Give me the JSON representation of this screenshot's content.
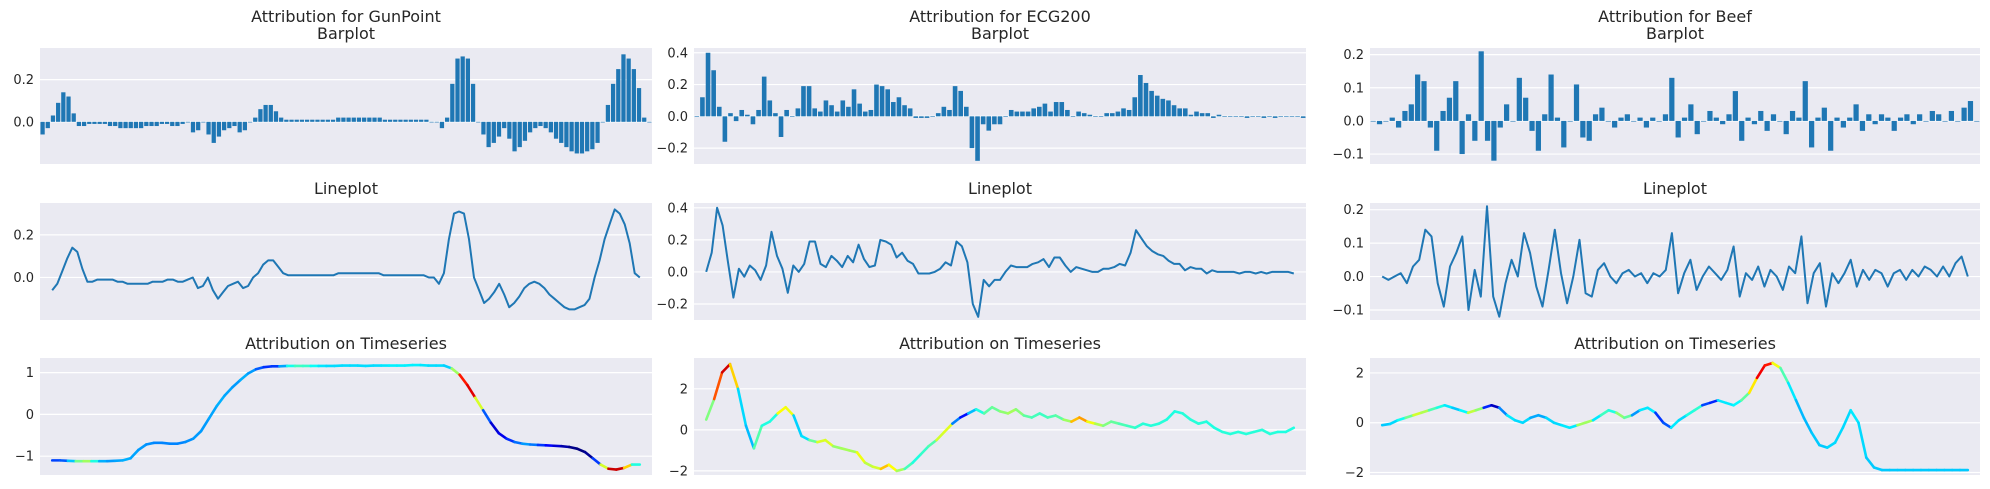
{
  "colors": {
    "bar": "#1f77b4",
    "line": "#1f77b4",
    "panel_bg": "#eaeaf2",
    "grid": "#ffffff",
    "colormap": "jet"
  },
  "chart_data": [
    {
      "type": "bar",
      "dataset": "GunPoint",
      "title": "Attribution for GunPoint",
      "subtitle": "Barplot",
      "ylim": [
        -0.2,
        0.35
      ],
      "yticks": [
        "0.2",
        "0.0"
      ],
      "ytick_values": [
        0.2,
        0.0
      ],
      "grid": true,
      "values": [
        -0.06,
        -0.03,
        0.03,
        0.09,
        0.14,
        0.12,
        0.04,
        -0.02,
        -0.02,
        -0.01,
        -0.01,
        -0.01,
        -0.01,
        -0.02,
        -0.02,
        -0.03,
        -0.03,
        -0.03,
        -0.03,
        -0.03,
        -0.02,
        -0.02,
        -0.02,
        -0.01,
        -0.01,
        -0.02,
        -0.02,
        -0.01,
        0.0,
        -0.05,
        -0.04,
        0.0,
        -0.06,
        -0.1,
        -0.07,
        -0.04,
        -0.03,
        -0.02,
        -0.05,
        -0.04,
        0.0,
        0.02,
        0.06,
        0.08,
        0.08,
        0.05,
        0.02,
        0.01,
        0.01,
        0.01,
        0.01,
        0.01,
        0.01,
        0.01,
        0.01,
        0.01,
        0.01,
        0.02,
        0.02,
        0.02,
        0.02,
        0.02,
        0.02,
        0.02,
        0.02,
        0.02,
        0.01,
        0.01,
        0.01,
        0.01,
        0.01,
        0.01,
        0.01,
        0.01,
        0.01,
        0.0,
        0.0,
        -0.03,
        0.02,
        0.18,
        0.3,
        0.31,
        0.3,
        0.18,
        0.0,
        -0.06,
        -0.12,
        -0.1,
        -0.07,
        -0.03,
        -0.08,
        -0.14,
        -0.12,
        -0.09,
        -0.05,
        -0.03,
        -0.02,
        -0.03,
        -0.05,
        -0.08,
        -0.1,
        -0.12,
        -0.14,
        -0.15,
        -0.15,
        -0.14,
        -0.13,
        -0.1,
        0.0,
        0.08,
        0.18,
        0.25,
        0.32,
        0.3,
        0.25,
        0.16,
        0.02,
        0.0
      ]
    },
    {
      "type": "line",
      "dataset": "GunPoint",
      "title": "Lineplot",
      "ylim": [
        -0.2,
        0.35
      ],
      "yticks": [
        "0.2",
        "0.0"
      ],
      "ytick_values": [
        0.2,
        0.0
      ],
      "grid": true,
      "values": [
        -0.06,
        -0.03,
        0.03,
        0.09,
        0.14,
        0.12,
        0.04,
        -0.02,
        -0.02,
        -0.01,
        -0.01,
        -0.01,
        -0.01,
        -0.02,
        -0.02,
        -0.03,
        -0.03,
        -0.03,
        -0.03,
        -0.03,
        -0.02,
        -0.02,
        -0.02,
        -0.01,
        -0.01,
        -0.02,
        -0.02,
        -0.01,
        0.0,
        -0.05,
        -0.04,
        0.0,
        -0.06,
        -0.1,
        -0.07,
        -0.04,
        -0.03,
        -0.02,
        -0.05,
        -0.04,
        0.0,
        0.02,
        0.06,
        0.08,
        0.08,
        0.05,
        0.02,
        0.01,
        0.01,
        0.01,
        0.01,
        0.01,
        0.01,
        0.01,
        0.01,
        0.01,
        0.01,
        0.02,
        0.02,
        0.02,
        0.02,
        0.02,
        0.02,
        0.02,
        0.02,
        0.02,
        0.01,
        0.01,
        0.01,
        0.01,
        0.01,
        0.01,
        0.01,
        0.01,
        0.01,
        0.0,
        0.0,
        -0.03,
        0.02,
        0.18,
        0.3,
        0.31,
        0.3,
        0.18,
        0.0,
        -0.06,
        -0.12,
        -0.1,
        -0.07,
        -0.03,
        -0.08,
        -0.14,
        -0.12,
        -0.09,
        -0.05,
        -0.03,
        -0.02,
        -0.03,
        -0.05,
        -0.08,
        -0.1,
        -0.12,
        -0.14,
        -0.15,
        -0.15,
        -0.14,
        -0.13,
        -0.1,
        0.0,
        0.08,
        0.18,
        0.25,
        0.32,
        0.3,
        0.25,
        0.16,
        0.02,
        0.0
      ]
    },
    {
      "type": "line",
      "colored_by": "attribution",
      "dataset": "GunPoint",
      "title": "Attribution on Timeseries",
      "ylim": [
        -1.45,
        1.35
      ],
      "yticks": [
        "1",
        "0",
        "−1"
      ],
      "ytick_values": [
        1,
        0,
        -1
      ],
      "grid": true,
      "values": [
        -1.1,
        -1.1,
        -1.11,
        -1.12,
        -1.12,
        -1.12,
        -1.12,
        -1.12,
        -1.11,
        -1.1,
        -1.05,
        -0.85,
        -0.72,
        -0.68,
        -0.68,
        -0.7,
        -0.7,
        -0.66,
        -0.58,
        -0.4,
        -0.1,
        0.2,
        0.45,
        0.65,
        0.82,
        0.98,
        1.08,
        1.13,
        1.15,
        1.15,
        1.16,
        1.16,
        1.16,
        1.16,
        1.16,
        1.16,
        1.16,
        1.17,
        1.17,
        1.17,
        1.16,
        1.17,
        1.17,
        1.17,
        1.17,
        1.17,
        1.18,
        1.18,
        1.17,
        1.17,
        1.17,
        1.1,
        0.95,
        0.7,
        0.4,
        0.1,
        -0.2,
        -0.45,
        -0.58,
        -0.66,
        -0.7,
        -0.72,
        -0.73,
        -0.74,
        -0.75,
        -0.76,
        -0.78,
        -0.82,
        -0.9,
        -1.05,
        -1.2,
        -1.3,
        -1.32,
        -1.28,
        -1.2,
        -1.2
      ],
      "attribution": [
        -0.06,
        -0.06,
        -0.04,
        0.04,
        0.12,
        0.08,
        0.0,
        -0.02,
        -0.02,
        -0.01,
        -0.01,
        -0.02,
        -0.02,
        -0.03,
        -0.03,
        -0.03,
        -0.03,
        -0.03,
        -0.02,
        -0.02,
        -0.02,
        -0.01,
        -0.01,
        -0.02,
        -0.02,
        0.0,
        -0.04,
        -0.06,
        -0.08,
        -0.05,
        0.02,
        0.05,
        0.06,
        0.04,
        0.02,
        0.01,
        0.01,
        0.01,
        0.01,
        0.01,
        0.01,
        0.01,
        0.01,
        0.02,
        0.02,
        0.02,
        0.02,
        0.02,
        0.01,
        0.01,
        0.01,
        0.0,
        0.2,
        0.3,
        0.25,
        0.0,
        -0.1,
        -0.12,
        -0.08,
        -0.06,
        -0.02,
        -0.02,
        -0.05,
        -0.08,
        -0.1,
        -0.12,
        -0.14,
        -0.15,
        -0.15,
        -0.13,
        0.0,
        0.25,
        0.32,
        0.25,
        0.08,
        0.0
      ]
    },
    {
      "type": "bar",
      "dataset": "ECG200",
      "title": "Attribution for ECG200",
      "subtitle": "Barplot",
      "ylim": [
        -0.3,
        0.43
      ],
      "yticks": [
        "0.4",
        "0.2",
        "0.0",
        "−0.2"
      ],
      "ytick_values": [
        0.4,
        0.2,
        0.0,
        -0.2
      ],
      "grid": true,
      "values": [
        0.0,
        0.12,
        0.4,
        0.29,
        0.06,
        -0.16,
        0.02,
        -0.03,
        0.04,
        0.01,
        -0.05,
        0.04,
        0.25,
        0.1,
        0.02,
        -0.13,
        0.04,
        0.0,
        0.05,
        0.19,
        0.19,
        0.05,
        0.03,
        0.1,
        0.07,
        0.03,
        0.1,
        0.06,
        0.17,
        0.08,
        0.03,
        0.04,
        0.2,
        0.19,
        0.17,
        0.09,
        0.12,
        0.07,
        0.05,
        -0.01,
        -0.01,
        -0.01,
        0.0,
        0.02,
        0.06,
        0.04,
        0.19,
        0.16,
        0.06,
        -0.2,
        -0.28,
        -0.05,
        -0.09,
        -0.05,
        -0.05,
        0.0,
        0.04,
        0.03,
        0.03,
        0.03,
        0.05,
        0.06,
        0.08,
        0.03,
        0.09,
        0.09,
        0.04,
        0.0,
        0.03,
        0.02,
        0.01,
        0.0,
        0.0,
        0.02,
        0.02,
        0.03,
        0.05,
        0.04,
        0.12,
        0.26,
        0.21,
        0.16,
        0.13,
        0.11,
        0.1,
        0.07,
        0.05,
        0.05,
        0.01,
        0.03,
        0.02,
        0.02,
        -0.01,
        0.01,
        0.0,
        0.0,
        0.0,
        0.0,
        -0.01,
        0.0,
        0.0,
        -0.01,
        0.0,
        -0.01,
        0.0,
        0.0,
        0.0,
        0.0,
        -0.01
      ]
    },
    {
      "type": "line",
      "dataset": "ECG200",
      "title": "Lineplot",
      "ylim": [
        -0.3,
        0.43
      ],
      "yticks": [
        "0.4",
        "0.2",
        "0.0",
        "−0.2"
      ],
      "ytick_values": [
        0.4,
        0.2,
        0.0,
        -0.2
      ],
      "grid": true,
      "values": [
        0.0,
        0.12,
        0.4,
        0.29,
        0.06,
        -0.16,
        0.02,
        -0.03,
        0.04,
        0.01,
        -0.05,
        0.04,
        0.25,
        0.1,
        0.02,
        -0.13,
        0.04,
        0.0,
        0.05,
        0.19,
        0.19,
        0.05,
        0.03,
        0.1,
        0.07,
        0.03,
        0.1,
        0.06,
        0.17,
        0.08,
        0.03,
        0.04,
        0.2,
        0.19,
        0.17,
        0.09,
        0.12,
        0.07,
        0.05,
        -0.01,
        -0.01,
        -0.01,
        0.0,
        0.02,
        0.06,
        0.04,
        0.19,
        0.16,
        0.06,
        -0.2,
        -0.28,
        -0.05,
        -0.09,
        -0.05,
        -0.05,
        0.0,
        0.04,
        0.03,
        0.03,
        0.03,
        0.05,
        0.06,
        0.08,
        0.03,
        0.09,
        0.09,
        0.04,
        0.0,
        0.03,
        0.02,
        0.01,
        0.0,
        0.0,
        0.02,
        0.02,
        0.03,
        0.05,
        0.04,
        0.12,
        0.26,
        0.21,
        0.16,
        0.13,
        0.11,
        0.1,
        0.07,
        0.05,
        0.05,
        0.01,
        0.03,
        0.02,
        0.02,
        -0.01,
        0.01,
        0.0,
        0.0,
        0.0,
        0.0,
        -0.01,
        0.0,
        0.0,
        -0.01,
        0.0,
        -0.01,
        0.0,
        0.0,
        0.0,
        0.0,
        -0.01
      ]
    },
    {
      "type": "line",
      "colored_by": "attribution",
      "dataset": "ECG200",
      "title": "Attribution on Timeseries",
      "ylim": [
        -2.2,
        3.5
      ],
      "yticks": [
        "2",
        "0",
        "−2"
      ],
      "ytick_values": [
        2,
        0,
        -2
      ],
      "grid": true,
      "values": [
        0.5,
        1.5,
        2.8,
        3.2,
        2.0,
        0.2,
        -0.9,
        0.2,
        0.4,
        0.8,
        1.1,
        0.7,
        -0.3,
        -0.5,
        -0.6,
        -0.5,
        -0.8,
        -0.9,
        -1.0,
        -1.1,
        -1.6,
        -1.8,
        -1.9,
        -1.7,
        -2.0,
        -1.9,
        -1.6,
        -1.2,
        -0.8,
        -0.5,
        -0.1,
        0.3,
        0.6,
        0.8,
        1.0,
        0.8,
        1.1,
        0.9,
        0.8,
        1.0,
        0.7,
        0.6,
        0.8,
        0.6,
        0.7,
        0.5,
        0.4,
        0.6,
        0.4,
        0.3,
        0.2,
        0.4,
        0.3,
        0.2,
        0.1,
        0.3,
        0.2,
        0.3,
        0.5,
        0.9,
        0.8,
        0.5,
        0.3,
        0.4,
        0.1,
        -0.1,
        -0.2,
        -0.1,
        -0.2,
        -0.1,
        0.0,
        -0.2,
        -0.1,
        -0.1,
        0.1
      ],
      "attribution": [
        0.0,
        0.12,
        0.4,
        0.29,
        0.06,
        -0.16,
        0.02,
        0.04,
        -0.05,
        0.04,
        0.25,
        0.02,
        -0.13,
        0.04,
        0.05,
        0.19,
        0.05,
        0.1,
        0.07,
        0.1,
        0.17,
        0.03,
        0.2,
        0.17,
        0.12,
        0.05,
        -0.01,
        0.0,
        0.02,
        0.04,
        0.19,
        0.06,
        -0.28,
        -0.09,
        -0.05,
        0.04,
        0.03,
        0.06,
        0.08,
        0.09,
        0.04,
        0.03,
        0.01,
        0.02,
        0.03,
        0.04,
        0.12,
        0.26,
        0.16,
        0.11,
        0.07,
        0.05,
        0.03,
        0.02,
        0.01,
        0.0,
        0.0,
        0.0,
        0.0,
        -0.01,
        0.0,
        0.0,
        0.0,
        0.0,
        -0.01,
        0.0,
        0.0,
        0.0,
        0.0,
        0.0,
        0.0,
        0.0,
        0.0,
        -0.01,
        0.0
      ]
    },
    {
      "type": "bar",
      "dataset": "Beef",
      "title": "Attribution for Beef",
      "subtitle": "Barplot",
      "ylim": [
        -0.13,
        0.22
      ],
      "yticks": [
        "0.2",
        "0.1",
        "0.0",
        "−0.1"
      ],
      "ytick_values": [
        0.2,
        0.1,
        0.0,
        -0.1
      ],
      "grid": true,
      "values": [
        0.0,
        -0.01,
        0.0,
        0.01,
        -0.02,
        0.03,
        0.05,
        0.14,
        0.12,
        -0.02,
        -0.09,
        0.03,
        0.07,
        0.12,
        -0.1,
        0.02,
        -0.06,
        0.21,
        -0.06,
        -0.12,
        -0.02,
        0.05,
        0.0,
        0.13,
        0.07,
        -0.03,
        -0.09,
        0.02,
        0.14,
        0.01,
        -0.08,
        0.0,
        0.11,
        -0.05,
        -0.06,
        0.02,
        0.04,
        0.0,
        -0.02,
        0.01,
        0.02,
        0.0,
        0.01,
        -0.02,
        0.01,
        0.0,
        0.02,
        0.13,
        -0.05,
        0.01,
        0.05,
        -0.04,
        0.0,
        0.03,
        0.01,
        -0.01,
        0.02,
        0.09,
        -0.06,
        0.01,
        -0.01,
        0.03,
        -0.03,
        0.02,
        0.0,
        -0.04,
        0.03,
        0.01,
        0.12,
        -0.08,
        0.01,
        0.04,
        -0.09,
        0.01,
        -0.02,
        0.01,
        0.05,
        -0.03,
        0.02,
        -0.01,
        0.02,
        0.01,
        -0.03,
        0.01,
        0.02,
        -0.01,
        0.02,
        0.0,
        0.03,
        0.02,
        0.0,
        0.03,
        0.0,
        0.04,
        0.06,
        0.0
      ]
    },
    {
      "type": "line",
      "dataset": "Beef",
      "title": "Lineplot",
      "ylim": [
        -0.13,
        0.22
      ],
      "yticks": [
        "0.2",
        "0.1",
        "0.0",
        "−0.1"
      ],
      "ytick_values": [
        0.2,
        0.1,
        0.0,
        -0.1
      ],
      "grid": true,
      "values": [
        0.0,
        -0.01,
        0.0,
        0.01,
        -0.02,
        0.03,
        0.05,
        0.14,
        0.12,
        -0.02,
        -0.09,
        0.03,
        0.07,
        0.12,
        -0.1,
        0.02,
        -0.06,
        0.21,
        -0.06,
        -0.12,
        -0.02,
        0.05,
        0.0,
        0.13,
        0.07,
        -0.03,
        -0.09,
        0.02,
        0.14,
        0.01,
        -0.08,
        0.0,
        0.11,
        -0.05,
        -0.06,
        0.02,
        0.04,
        0.0,
        -0.02,
        0.01,
        0.02,
        0.0,
        0.01,
        -0.02,
        0.01,
        0.0,
        0.02,
        0.13,
        -0.05,
        0.01,
        0.05,
        -0.04,
        0.0,
        0.03,
        0.01,
        -0.01,
        0.02,
        0.09,
        -0.06,
        0.01,
        -0.01,
        0.03,
        -0.03,
        0.02,
        0.0,
        -0.04,
        0.03,
        0.01,
        0.12,
        -0.08,
        0.01,
        0.04,
        -0.09,
        0.01,
        -0.02,
        0.01,
        0.05,
        -0.03,
        0.02,
        -0.01,
        0.02,
        0.01,
        -0.03,
        0.01,
        0.02,
        -0.01,
        0.02,
        0.0,
        0.03,
        0.02,
        0.0,
        0.03,
        0.0,
        0.04,
        0.06,
        0.0
      ]
    },
    {
      "type": "line",
      "colored_by": "attribution",
      "dataset": "Beef",
      "title": "Attribution on Timeseries",
      "ylim": [
        -2.1,
        2.6
      ],
      "yticks": [
        "2",
        "0",
        "−2"
      ],
      "ytick_values": [
        2,
        0,
        -2
      ],
      "grid": true,
      "values": [
        -0.1,
        -0.05,
        0.1,
        0.2,
        0.3,
        0.4,
        0.5,
        0.6,
        0.7,
        0.6,
        0.5,
        0.4,
        0.5,
        0.6,
        0.7,
        0.6,
        0.3,
        0.1,
        0.0,
        0.2,
        0.3,
        0.2,
        0.0,
        -0.1,
        -0.2,
        -0.1,
        0.0,
        0.1,
        0.3,
        0.5,
        0.4,
        0.2,
        0.3,
        0.5,
        0.6,
        0.4,
        0.0,
        -0.2,
        0.1,
        0.3,
        0.5,
        0.7,
        0.8,
        0.9,
        0.8,
        0.7,
        0.9,
        1.2,
        1.8,
        2.3,
        2.4,
        2.2,
        1.6,
        0.9,
        0.2,
        -0.4,
        -0.9,
        -1.0,
        -0.8,
        -0.2,
        0.5,
        0.0,
        -1.4,
        -1.8,
        -1.9,
        -1.9,
        -1.9,
        -1.9,
        -1.9,
        -1.9,
        -1.9,
        -1.9,
        -1.9,
        -1.9,
        -1.9,
        -1.9
      ],
      "attribution": [
        0.0,
        0.0,
        0.01,
        0.03,
        0.07,
        0.09,
        0.05,
        0.03,
        0.02,
        0.0,
        0.0,
        0.03,
        0.12,
        0.0,
        -0.1,
        -0.06,
        0.02,
        0.0,
        0.01,
        0.0,
        -0.02,
        0.0,
        0.01,
        0.0,
        0.02,
        0.0,
        0.13,
        0.0,
        0.02,
        0.05,
        0.0,
        0.12,
        -0.03,
        0.0,
        0.02,
        0.0,
        -0.09,
        0.02,
        0.0,
        0.01,
        0.04,
        0.02,
        -0.1,
        0.0,
        0.02,
        0.0,
        0.03,
        0.06,
        0.14,
        0.21,
        0.12,
        0.06,
        0.02,
        0.0,
        -0.01,
        0.0,
        0.0,
        0.0,
        0.01,
        0.0,
        0.01,
        0.01,
        0.0,
        0.0,
        0.0,
        0.0,
        0.0,
        0.0,
        0.0,
        0.0,
        0.0,
        0.0,
        0.0,
        0.0,
        0.0,
        0.0
      ]
    }
  ]
}
